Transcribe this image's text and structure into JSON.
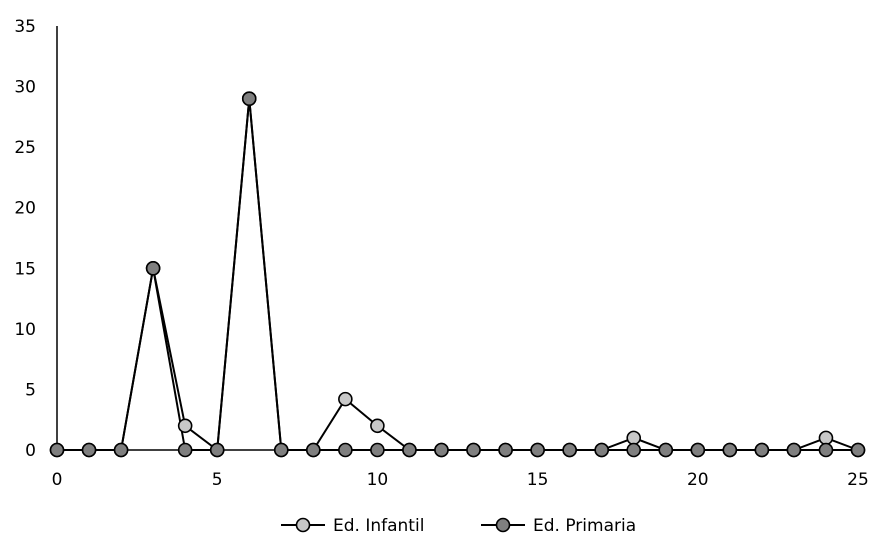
{
  "chart_data": {
    "type": "line",
    "title": "",
    "xlabel": "",
    "ylabel": "",
    "xlim": [
      0,
      25
    ],
    "ylim": [
      0,
      35
    ],
    "x_ticks": [
      "0",
      "5",
      "10",
      "15",
      "20",
      "25"
    ],
    "y_ticks": [
      "0",
      "5",
      "10",
      "15",
      "20",
      "25",
      "30",
      "35"
    ],
    "grid": false,
    "legend_position": "bottom",
    "x": [
      0,
      1,
      2,
      3,
      4,
      5,
      6,
      7,
      8,
      9,
      10,
      11,
      12,
      13,
      14,
      15,
      16,
      17,
      18,
      19,
      20,
      21,
      22,
      23,
      24,
      25
    ],
    "series": [
      {
        "name": "Ed. Infantil",
        "color": "#c8c8c8",
        "values": [
          0,
          0,
          0,
          15,
          2,
          0,
          29,
          0,
          0,
          4.2,
          2,
          0,
          0,
          0,
          0,
          0,
          0,
          0,
          1,
          0,
          0,
          0,
          0,
          0,
          1,
          0
        ]
      },
      {
        "name": "Ed. Primaria",
        "color": "#7f7f7f",
        "values": [
          0,
          0,
          0,
          15,
          0,
          0,
          29,
          0,
          0,
          0,
          0,
          0,
          0,
          0,
          0,
          0,
          0,
          0,
          0,
          0,
          0,
          0,
          0,
          0,
          0,
          0
        ]
      }
    ]
  }
}
